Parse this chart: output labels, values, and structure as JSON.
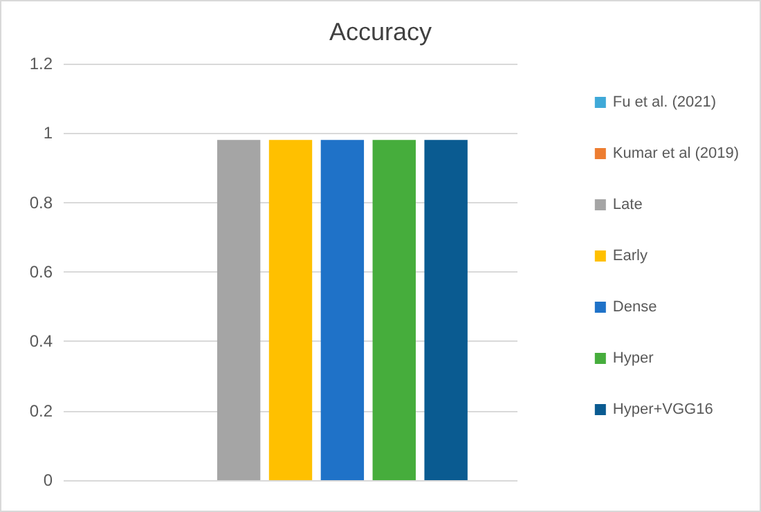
{
  "chart_data": {
    "type": "bar",
    "title": "Accuracy",
    "categories": [
      null
    ],
    "series": [
      {
        "name": "Fu et al. (2021)",
        "color": "#3fa9d8",
        "values": [
          null
        ]
      },
      {
        "name": "Kumar et al (2019)",
        "color": "#ed7d31",
        "values": [
          null
        ]
      },
      {
        "name": "Late",
        "color": "#a5a5a5",
        "values": [
          0.98
        ]
      },
      {
        "name": "Early",
        "color": "#ffc000",
        "values": [
          0.98
        ]
      },
      {
        "name": "Dense",
        "color": "#1f72c8",
        "values": [
          0.98
        ]
      },
      {
        "name": "Hyper",
        "color": "#46ad3c",
        "values": [
          0.98
        ]
      },
      {
        "name": "Hyper+VGG16",
        "color": "#0a5b91",
        "values": [
          0.98
        ]
      }
    ],
    "ylim": [
      0,
      1.2
    ],
    "yticks": [
      0,
      0.2,
      0.4,
      0.6,
      0.8,
      1,
      1.2
    ],
    "grid": "y",
    "legend": "right"
  }
}
